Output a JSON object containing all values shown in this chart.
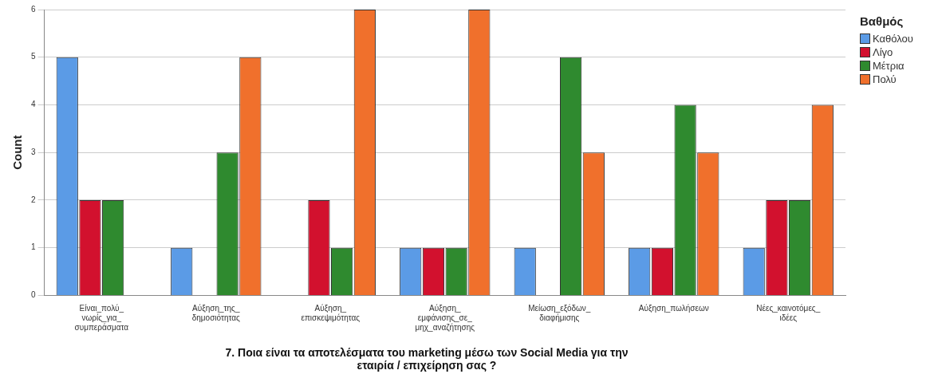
{
  "chart_data": {
    "type": "bar",
    "title": "7. Ποια είναι τα αποτελέσματα του marketing μέσω των Social Media για την εταιρία / επιχείρηση σας ?",
    "ylabel": "Count",
    "legend_title": "Βαθμός",
    "categories": [
      "Είναι_πολύ_νωρίς_για_συμπεράσματα",
      "Αύξηση_της_δημοσιότητας",
      "Αύξηση_επισκεψιμότητας",
      "Αύξηση_εμφάνισης_σε_μηχ_αναζήτησης",
      "Μείωση_εξόδων_διαφήμισης",
      "Αύξηση_πωλήσεων",
      "Νέες_καινοτόμες_ιδέες"
    ],
    "series": [
      {
        "name": "Καθόλου",
        "color": "#5b9be6",
        "values": [
          5,
          1,
          null,
          1,
          1,
          1,
          1
        ]
      },
      {
        "name": "Λίγο",
        "color": "#d2112e",
        "values": [
          2,
          null,
          2,
          1,
          null,
          1,
          2
        ]
      },
      {
        "name": "Μέτρια",
        "color": "#2f8a2f",
        "values": [
          2,
          3,
          1,
          1,
          5,
          4,
          2
        ]
      },
      {
        "name": "Πολύ",
        "color": "#f0702c",
        "values": [
          null,
          5,
          6,
          6,
          3,
          3,
          4
        ]
      }
    ],
    "ylim": [
      0,
      6
    ],
    "yticks": [
      0,
      1,
      2,
      3,
      4,
      5,
      6
    ],
    "grid": "y",
    "legend": "right"
  }
}
